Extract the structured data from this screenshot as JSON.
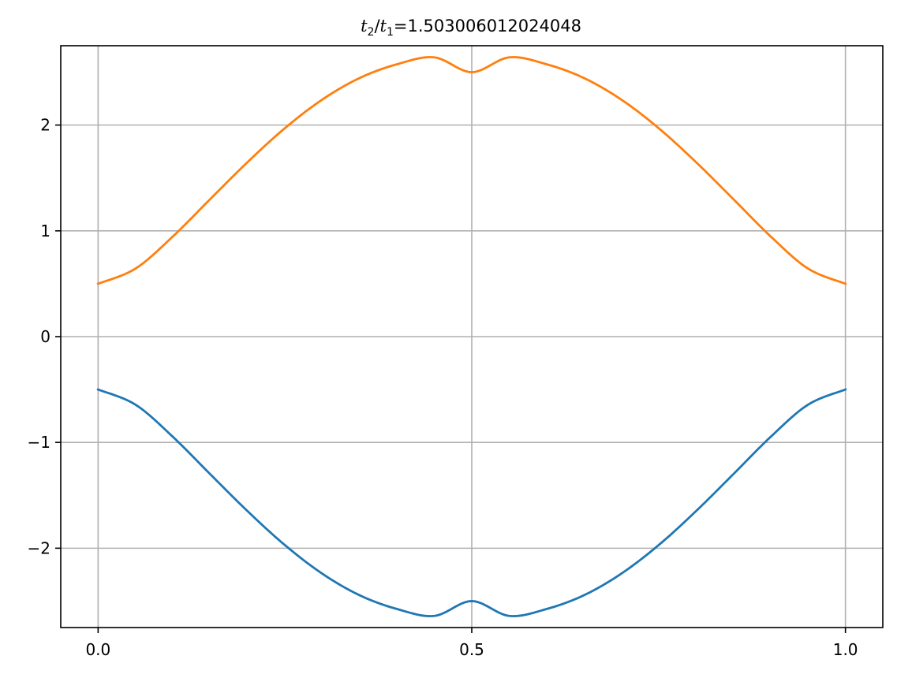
{
  "chart_data": {
    "type": "line",
    "title": {
      "var1": "t",
      "sub1": "2",
      "sep": "/",
      "var2": "t",
      "sub2": "1",
      "value_text": "=1.503006012024048"
    },
    "xlabel": "",
    "ylabel": "",
    "xlim": [
      -0.05,
      1.05
    ],
    "ylim": [
      -2.75,
      2.75
    ],
    "grid": true,
    "x_ticks": [
      {
        "value": 0.0,
        "label": "0.0"
      },
      {
        "value": 0.5,
        "label": "0.5"
      },
      {
        "value": 1.0,
        "label": "1.0"
      }
    ],
    "y_ticks": [
      {
        "value": -2,
        "label": "−2"
      },
      {
        "value": -1,
        "label": "−1"
      },
      {
        "value": 0,
        "label": "0"
      },
      {
        "value": 1,
        "label": "1"
      },
      {
        "value": 2,
        "label": "2"
      }
    ],
    "x": [
      0.0,
      0.05,
      0.1,
      0.15,
      0.2,
      0.25,
      0.3,
      0.35,
      0.4,
      0.45,
      0.5,
      0.55,
      0.6,
      0.65,
      0.7,
      0.75,
      0.8,
      0.85,
      0.9,
      0.95,
      1.0
    ],
    "series": [
      {
        "color": "#1f77b4",
        "values": [
          -0.5,
          -0.643,
          -0.947,
          -1.3,
          -1.65,
          -1.971,
          -2.241,
          -2.445,
          -2.575,
          -2.64,
          -2.5,
          -2.64,
          -2.575,
          -2.445,
          -2.241,
          -1.971,
          -1.65,
          -1.3,
          -0.947,
          -0.643,
          -0.5
        ]
      },
      {
        "color": "#ff7f0e",
        "values": [
          0.5,
          0.643,
          0.947,
          1.3,
          1.65,
          1.971,
          2.241,
          2.445,
          2.575,
          2.64,
          2.5,
          2.64,
          2.575,
          2.445,
          2.241,
          1.971,
          1.65,
          1.3,
          0.947,
          0.643,
          0.5
        ]
      }
    ]
  }
}
